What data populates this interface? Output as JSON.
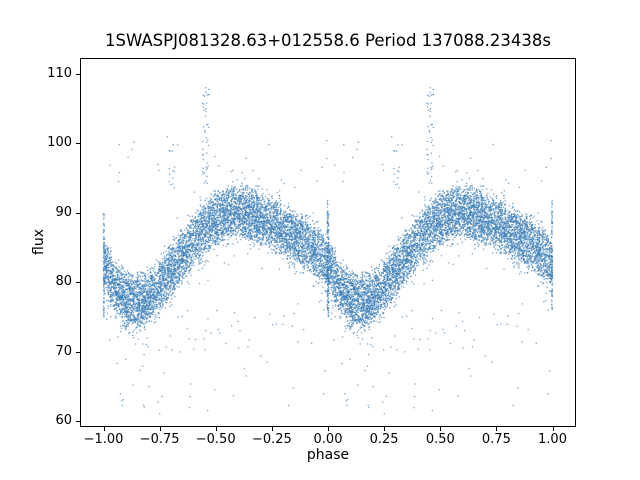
{
  "chart_data": {
    "type": "scatter",
    "title": "1SWASPJ081328.63+012558.6 Period 137088.23438s",
    "xlabel": "phase",
    "ylabel": "flux",
    "xlim": [
      -1.1,
      1.1
    ],
    "ylim": [
      59.3,
      112.1
    ],
    "grid": false,
    "legend": null,
    "x_ticks": {
      "values": [
        -1.0,
        -0.75,
        -0.5,
        -0.25,
        0.0,
        0.25,
        0.5,
        0.75,
        1.0
      ],
      "labels": [
        "−1.00",
        "−0.75",
        "−0.50",
        "−0.25",
        "0.00",
        "0.25",
        "0.50",
        "0.75",
        "1.00"
      ]
    },
    "y_ticks": {
      "values": [
        60,
        70,
        80,
        90,
        100,
        110
      ],
      "labels": [
        "60",
        "70",
        "80",
        "90",
        "100",
        "110"
      ]
    },
    "marker": {
      "color": "#3d7fb8",
      "alpha": 0.7,
      "size": 1.3
    },
    "scatter_model": {
      "seed": 42,
      "n_points": 7000,
      "phase_fold_repeat": [
        0,
        -1
      ],
      "mean_phase": [
        0.0,
        0.05,
        0.1,
        0.15,
        0.2,
        0.25,
        0.3,
        0.35,
        0.4,
        0.45,
        0.5,
        0.55,
        0.6,
        0.65,
        0.7,
        0.75,
        0.8,
        0.85,
        0.9,
        0.95,
        1.0
      ],
      "mean_flux": [
        83.5,
        80.0,
        78.0,
        77.6,
        78.3,
        79.8,
        82.0,
        84.3,
        86.3,
        88.2,
        89.6,
        90.4,
        90.7,
        90.4,
        89.7,
        88.9,
        88.0,
        87.0,
        86.0,
        84.9,
        83.5
      ],
      "n_bands": 14,
      "band_sigma": 1.5,
      "jitter_sigma": 0.85,
      "low_tail": {
        "fraction": 0.03,
        "max_depth": 6
      },
      "high_tail": {
        "fraction": 0.012,
        "max_height": 4
      },
      "low_outliers": {
        "count": 70,
        "flux_range": [
          61,
          76
        ]
      },
      "high_outliers": {
        "count": 25,
        "flux_range": [
          93,
          101
        ]
      },
      "clusters": [
        {
          "phase_range": [
            0.44,
            0.47
          ],
          "flux_range": [
            94,
            108
          ],
          "count": 45
        },
        {
          "phase_range": [
            0.29,
            0.32
          ],
          "flux_range": [
            93,
            100
          ],
          "count": 14
        },
        {
          "phase_range": [
            0.0,
            0.004
          ],
          "flux_range": [
            75,
            90
          ],
          "count": 80
        },
        {
          "phase_range": [
            0.996,
            1.0
          ],
          "flux_range": [
            76,
            92
          ],
          "count": 80
        }
      ]
    }
  }
}
